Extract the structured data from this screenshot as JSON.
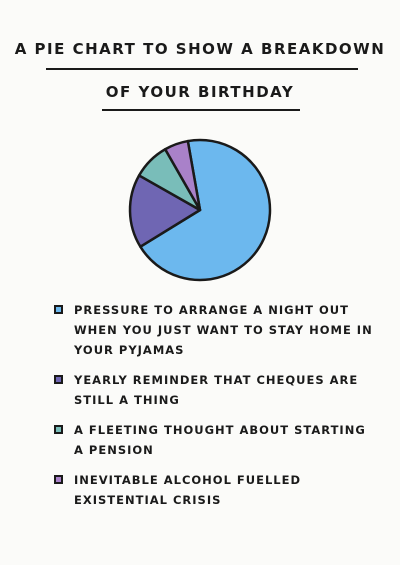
{
  "chart_data": {
    "type": "pie",
    "title": [
      "A PIE CHART TO SHOW A BREAKDOWN",
      "OF YOUR BIRTHDAY"
    ],
    "slices": [
      {
        "label": "PRESSURE TO ARRANGE A NIGHT OUT WHEN YOU JUST WANT TO STAY HOME IN YOUR PYJAMAS",
        "value": 69,
        "color": "#6cb8ee"
      },
      {
        "label": "YEARLY REMINDER THAT CHEQUES ARE STILL A THING",
        "value": 17,
        "color": "#6f66b3"
      },
      {
        "label": "A FLEETING THOUGHT ABOUT STARTING A PENSION",
        "value": 8.5,
        "color": "#79bdb9"
      },
      {
        "label": "INEVITABLE ALCOHOL FUELLED EXISTENTIAL CRISIS",
        "value": 5.5,
        "color": "#a981c9"
      }
    ]
  }
}
